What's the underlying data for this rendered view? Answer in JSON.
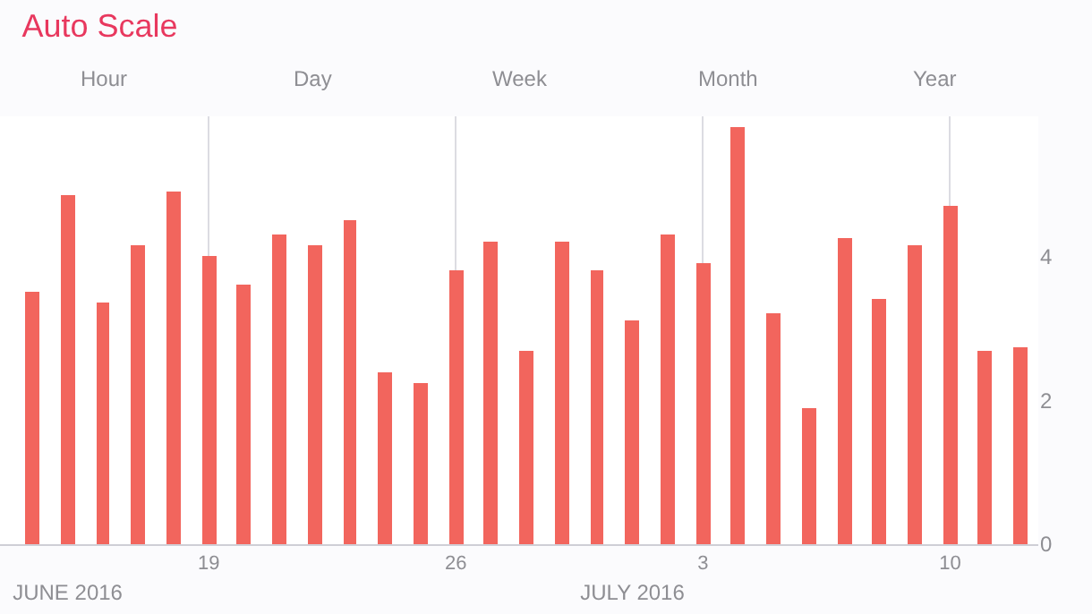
{
  "chart_data": {
    "type": "bar",
    "title": "Auto Scale",
    "annotations": [
      "Hour",
      "Day",
      "Week",
      "Month",
      "Year"
    ],
    "x2lim": [
      "2016-06-13T02:00",
      "2016-07-12T12:00"
    ],
    "x2ticks": [
      {
        "value": "2016-06-15",
        "label": "JUNE 2016"
      },
      {
        "value": "2016-07-01",
        "label": "JULY 2016"
      }
    ],
    "x": [
      "2016-06-14",
      "2016-06-15",
      "2016-06-16",
      "2016-06-17",
      "2016-06-18",
      "2016-06-19",
      "2016-06-20",
      "2016-06-21",
      "2016-06-22",
      "2016-06-23",
      "2016-06-24",
      "2016-06-25",
      "2016-06-26",
      "2016-06-27",
      "2016-06-28",
      "2016-06-29",
      "2016-06-30",
      "2016-07-01",
      "2016-07-02",
      "2016-07-03",
      "2016-07-04",
      "2016-07-05",
      "2016-07-06",
      "2016-07-07",
      "2016-07-08",
      "2016-07-09",
      "2016-07-10",
      "2016-07-11",
      "2016-07-12"
    ],
    "values": [
      3.5,
      4.85,
      3.35,
      4.15,
      4.9,
      4.0,
      3.6,
      4.3,
      4.15,
      4.5,
      2.4,
      2.25,
      3.8,
      4.2,
      2.7,
      4.2,
      3.8,
      3.1,
      4.3,
      3.9,
      5.8,
      3.2,
      1.9,
      4.25,
      3.4,
      4.15,
      4.7,
      2.7,
      2.75
    ],
    "color": "#f2655d",
    "xlim": [
      "2016-06-13T02:00",
      "2016-07-12T12:00"
    ],
    "xticks": [
      {
        "value": "2016-06-19",
        "label": "19"
      },
      {
        "value": "2016-06-26",
        "label": "26"
      },
      {
        "value": "2016-07-03",
        "label": "3"
      },
      {
        "value": "2016-07-10",
        "label": "10"
      }
    ],
    "ylim": [
      0,
      5.95
    ],
    "yticks": [
      0,
      2,
      4
    ],
    "grid": "x"
  }
}
